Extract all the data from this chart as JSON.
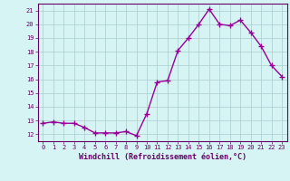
{
  "x": [
    0,
    1,
    2,
    3,
    4,
    5,
    6,
    7,
    8,
    9,
    10,
    11,
    12,
    13,
    14,
    15,
    16,
    17,
    18,
    19,
    20,
    21,
    22,
    23
  ],
  "y": [
    12.8,
    12.9,
    12.8,
    12.8,
    12.5,
    12.1,
    12.1,
    12.1,
    12.2,
    11.9,
    13.5,
    15.8,
    15.9,
    18.1,
    19.0,
    20.0,
    21.1,
    20.0,
    19.9,
    20.3,
    19.4,
    18.4,
    17.0,
    16.2
  ],
  "line_color": "#990099",
  "marker": "+",
  "marker_size": 4,
  "marker_lw": 1.0,
  "line_width": 1.0,
  "bg_color": "#d6f4f4",
  "grid_color": "#aacccc",
  "xlabel": "Windchill (Refroidissement éolien,°C)",
  "xlabel_color": "#660066",
  "tick_color": "#660066",
  "spine_color": "#660066",
  "ylim": [
    11.5,
    21.5
  ],
  "xlim": [
    -0.5,
    23.5
  ],
  "yticks": [
    12,
    13,
    14,
    15,
    16,
    17,
    18,
    19,
    20,
    21
  ],
  "xticks": [
    0,
    1,
    2,
    3,
    4,
    5,
    6,
    7,
    8,
    9,
    10,
    11,
    12,
    13,
    14,
    15,
    16,
    17,
    18,
    19,
    20,
    21,
    22,
    23
  ],
  "tick_fontsize": 5.0,
  "xlabel_fontsize": 6.0
}
